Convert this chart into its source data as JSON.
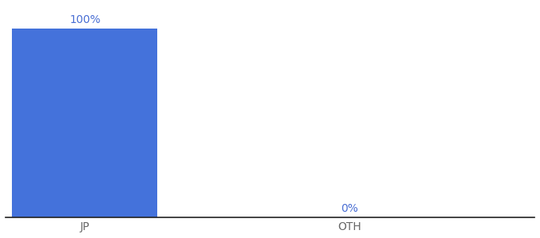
{
  "categories": [
    "JP",
    "OTH"
  ],
  "values": [
    100,
    0
  ],
  "bar_color": "#4472db",
  "label_color": "#4a6fd4",
  "axis_label_color": "#666666",
  "background_color": "#ffffff",
  "bar_width": 0.55,
  "ylim": [
    0,
    112
  ],
  "value_labels": [
    "100%",
    "0%"
  ],
  "figsize": [
    6.8,
    3.0
  ],
  "dpi": 100,
  "xlim": [
    -0.3,
    1.7
  ]
}
